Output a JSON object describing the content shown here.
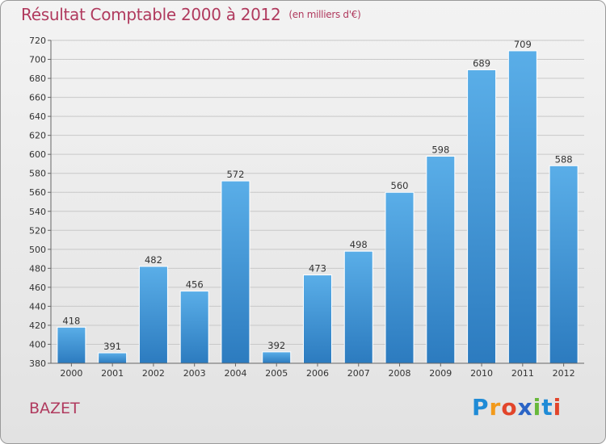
{
  "title": "Résultat Comptable 2000 à 2012",
  "subtitle": "(en milliers d'€)",
  "place": "BAZET",
  "logo": {
    "letters": [
      "P",
      "r",
      "o",
      "x",
      "i",
      "t",
      "i"
    ],
    "colors": [
      "#1f8bd6",
      "#f29a1b",
      "#e2452b",
      "#2a64c6",
      "#67b83a",
      "#1f8bd6",
      "#e2452b"
    ]
  },
  "colors": {
    "bar_top": "#5aaee8",
    "bar_bottom": "#2c7bbf",
    "title": "#b03a5e"
  },
  "chart_data": {
    "type": "bar",
    "categories": [
      "2000",
      "2001",
      "2002",
      "2003",
      "2004",
      "2005",
      "2006",
      "2007",
      "2008",
      "2009",
      "2010",
      "2011",
      "2012"
    ],
    "values": [
      418,
      391,
      482,
      456,
      572,
      392,
      473,
      498,
      560,
      598,
      689,
      709,
      588
    ],
    "ylim": [
      380,
      720
    ],
    "yticks": [
      380,
      400,
      420,
      440,
      460,
      480,
      500,
      520,
      540,
      560,
      580,
      600,
      620,
      640,
      660,
      680,
      700,
      720
    ],
    "grid": true,
    "xlabel": "",
    "ylabel": ""
  }
}
